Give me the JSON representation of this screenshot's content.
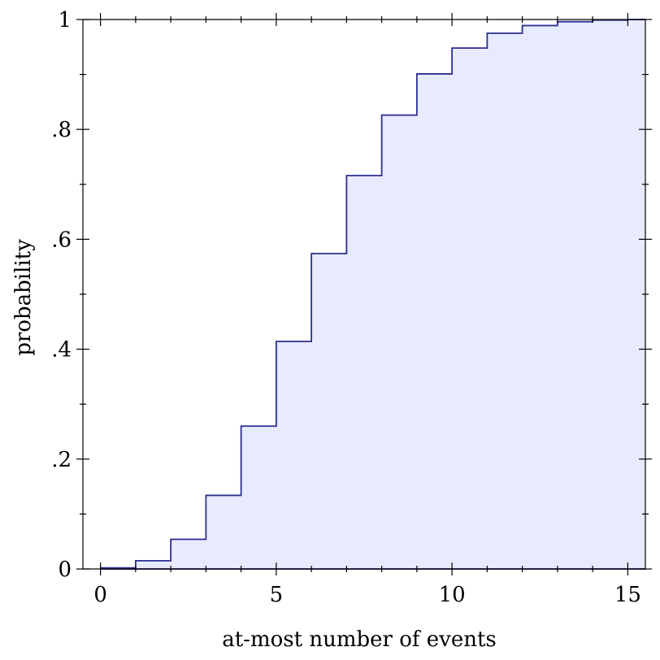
{
  "chart_data": {
    "type": "area",
    "subtype": "step-cdf",
    "xlabel": "at-most number of events",
    "ylabel": "probability",
    "xlim": [
      -0.5,
      15.5
    ],
    "ylim": [
      0,
      1
    ],
    "x_ticks": [
      {
        "value": 0,
        "label": "0"
      },
      {
        "value": 5,
        "label": "5"
      },
      {
        "value": 10,
        "label": "10"
      },
      {
        "value": 15,
        "label": "15"
      }
    ],
    "y_ticks": [
      {
        "value": 0,
        "label": "0"
      },
      {
        "value": 0.2,
        "label": ".2"
      },
      {
        "value": 0.4,
        "label": ".4"
      },
      {
        "value": 0.6,
        "label": ".6"
      },
      {
        "value": 0.8,
        "label": ".8"
      },
      {
        "value": 1,
        "label": "1"
      }
    ],
    "x_minor_step": 1,
    "y_minor_step": 0.1,
    "grid": false,
    "series": [
      {
        "x": [
          0,
          1,
          2,
          3,
          4,
          5,
          6,
          7,
          8,
          9,
          10,
          11,
          12,
          13,
          14,
          15
        ],
        "values": [
          0.002,
          0.015,
          0.054,
          0.134,
          0.26,
          0.414,
          0.574,
          0.716,
          0.826,
          0.901,
          0.948,
          0.975,
          0.989,
          0.996,
          0.999,
          1.0
        ],
        "color": "#2b2f8f",
        "fill": "#e8eafe"
      }
    ]
  }
}
